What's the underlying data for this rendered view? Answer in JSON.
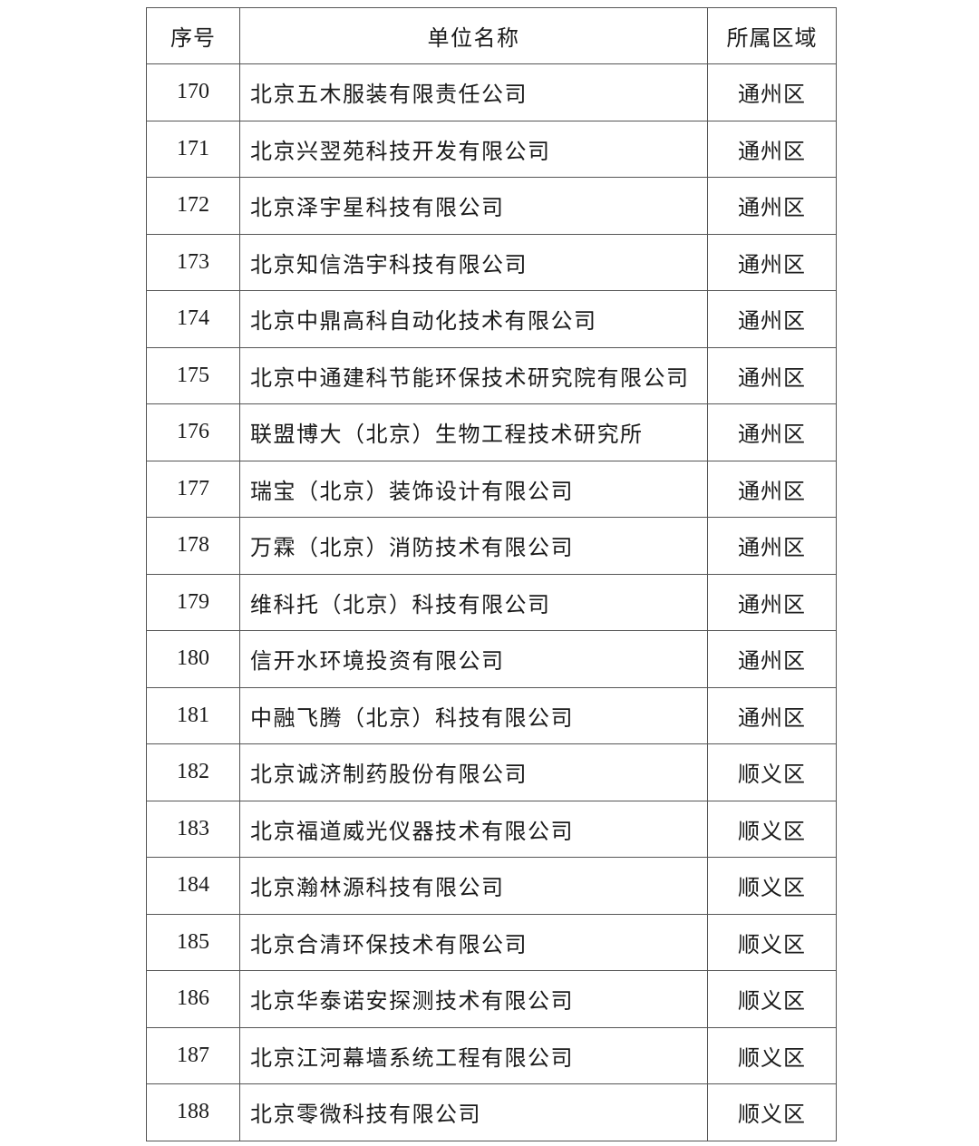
{
  "table": {
    "headers": {
      "no": "序号",
      "name": "单位名称",
      "district": "所属区域"
    },
    "rows": [
      {
        "no": "170",
        "name": "北京五木服装有限责任公司",
        "district": "通州区"
      },
      {
        "no": "171",
        "name": "北京兴翌苑科技开发有限公司",
        "district": "通州区"
      },
      {
        "no": "172",
        "name": "北京泽宇星科技有限公司",
        "district": "通州区"
      },
      {
        "no": "173",
        "name": "北京知信浩宇科技有限公司",
        "district": "通州区"
      },
      {
        "no": "174",
        "name": "北京中鼎高科自动化技术有限公司",
        "district": "通州区"
      },
      {
        "no": "175",
        "name": "北京中通建科节能环保技术研究院有限公司",
        "district": "通州区"
      },
      {
        "no": "176",
        "name": "联盟博大（北京）生物工程技术研究所",
        "district": "通州区"
      },
      {
        "no": "177",
        "name": "瑞宝（北京）装饰设计有限公司",
        "district": "通州区"
      },
      {
        "no": "178",
        "name": "万霖（北京）消防技术有限公司",
        "district": "通州区"
      },
      {
        "no": "179",
        "name": "维科托（北京）科技有限公司",
        "district": "通州区"
      },
      {
        "no": "180",
        "name": "信开水环境投资有限公司",
        "district": "通州区"
      },
      {
        "no": "181",
        "name": "中融飞腾（北京）科技有限公司",
        "district": "通州区"
      },
      {
        "no": "182",
        "name": "北京诚济制药股份有限公司",
        "district": "顺义区"
      },
      {
        "no": "183",
        "name": "北京福道威光仪器技术有限公司",
        "district": "顺义区"
      },
      {
        "no": "184",
        "name": "北京瀚林源科技有限公司",
        "district": "顺义区"
      },
      {
        "no": "185",
        "name": "北京合清环保技术有限公司",
        "district": "顺义区"
      },
      {
        "no": "186",
        "name": "北京华泰诺安探测技术有限公司",
        "district": "顺义区"
      },
      {
        "no": "187",
        "name": "北京江河幕墙系统工程有限公司",
        "district": "顺义区"
      },
      {
        "no": "188",
        "name": "北京零微科技有限公司",
        "district": "顺义区"
      }
    ]
  }
}
